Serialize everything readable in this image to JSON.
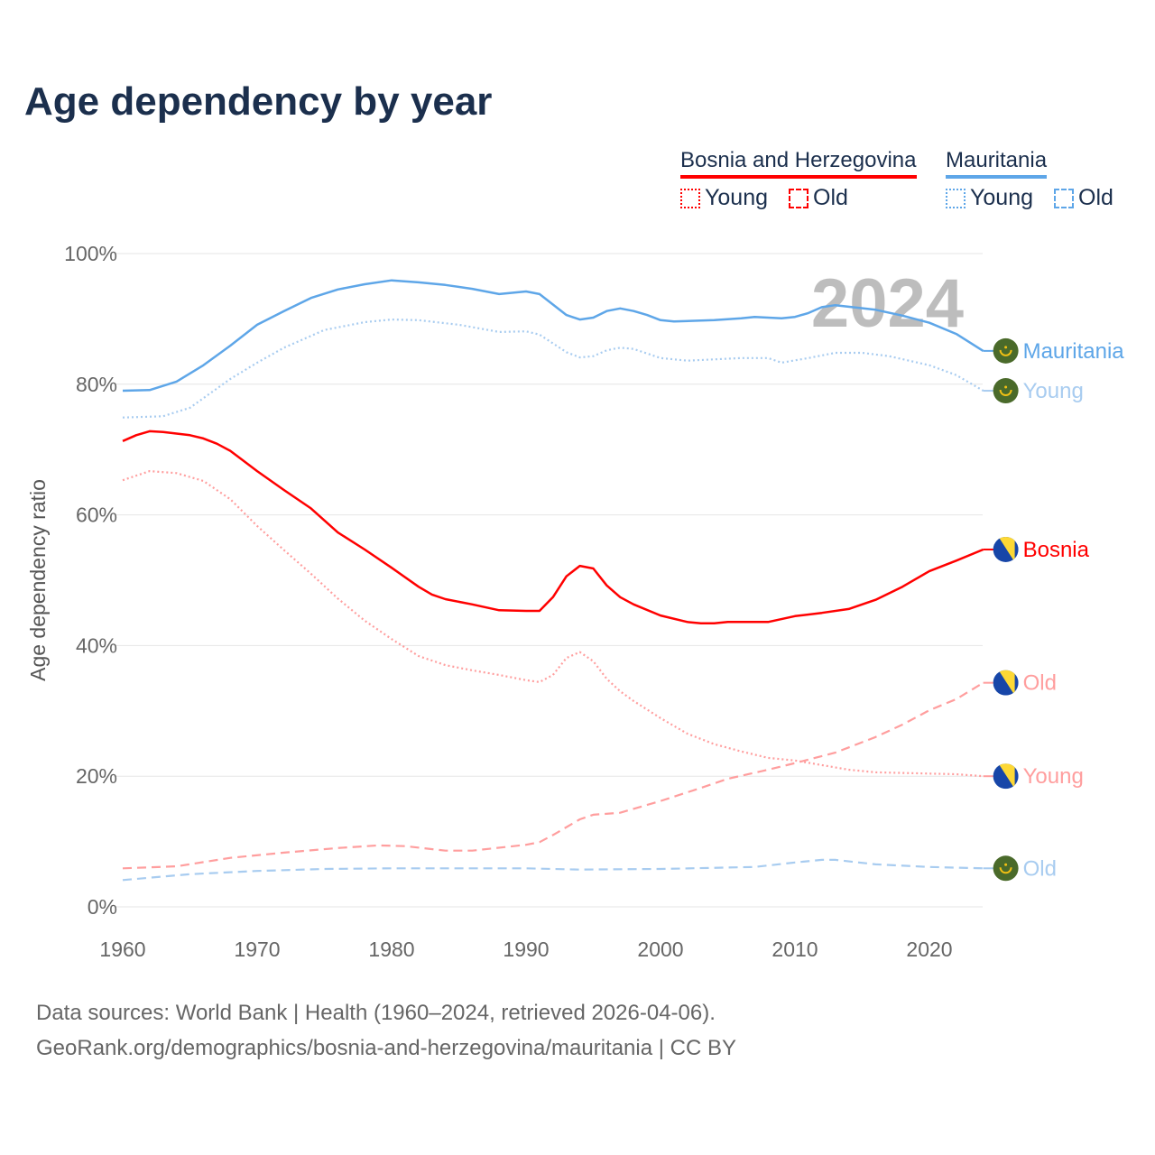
{
  "title": "Age dependency by year",
  "legend": {
    "groups": [
      {
        "name": "Bosnia and Herzegovina",
        "color": "#ff0000",
        "items": [
          "Young",
          "Old"
        ]
      },
      {
        "name": "Mauritania",
        "color": "#5ea6e8",
        "items": [
          "Young",
          "Old"
        ]
      }
    ]
  },
  "chart_data": {
    "type": "line",
    "title": "Age dependency by year",
    "xlabel": "",
    "ylabel": "Age dependency ratio",
    "xlim": [
      1960,
      2024
    ],
    "ylim": [
      0,
      100
    ],
    "xticks": [
      "1960",
      "1970",
      "1980",
      "1990",
      "2000",
      "2010",
      "2020"
    ],
    "yticks": [
      "0%",
      "20%",
      "40%",
      "60%",
      "80%",
      "100%"
    ],
    "grid": true,
    "year_watermark": "2024",
    "series": [
      {
        "name": "Mauritania",
        "end_label": "Mauritania",
        "color": "#5ea6e8",
        "dash": "solid",
        "flag": "mauritania",
        "x": [
          1960,
          1962,
          1964,
          1966,
          1968,
          1970,
          1972,
          1974,
          1976,
          1978,
          1980,
          1982,
          1984,
          1986,
          1988,
          1990,
          1991,
          1993,
          1994,
          1995,
          1996,
          1997,
          1998,
          1999,
          2000,
          2001,
          2004,
          2006,
          2007,
          2009,
          2010,
          2011,
          2012,
          2013,
          2016,
          2018,
          2020,
          2022,
          2024
        ],
        "y": [
          79.0,
          79.1,
          80.4,
          82.9,
          85.9,
          89.1,
          91.2,
          93.2,
          94.5,
          95.3,
          95.9,
          95.6,
          95.2,
          94.6,
          93.8,
          94.2,
          93.8,
          90.6,
          89.9,
          90.2,
          91.2,
          91.6,
          91.2,
          90.6,
          89.8,
          89.6,
          89.8,
          90.1,
          90.3,
          90.1,
          90.3,
          90.9,
          91.8,
          92.1,
          91.4,
          90.5,
          89.4,
          87.7,
          85.1
        ]
      },
      {
        "name": "Mauritania Young",
        "end_label": "Young",
        "color": "#a8ccf0",
        "dash": "dotted",
        "flag": "mauritania",
        "x": [
          1960,
          1963,
          1965,
          1968,
          1970,
          1972,
          1975,
          1978,
          1980,
          1982,
          1985,
          1988,
          1990,
          1991,
          1993,
          1994,
          1995,
          1996,
          1997,
          1998,
          2000,
          2002,
          2006,
          2008,
          2009,
          2011,
          2013,
          2015,
          2017,
          2020,
          2022,
          2024
        ],
        "y": [
          74.9,
          75.1,
          76.4,
          80.8,
          83.3,
          85.6,
          88.3,
          89.5,
          89.9,
          89.8,
          89.1,
          88.0,
          88.1,
          87.6,
          84.9,
          84.1,
          84.3,
          85.2,
          85.6,
          85.4,
          84.0,
          83.6,
          84.0,
          84.0,
          83.3,
          84.0,
          84.8,
          84.8,
          84.3,
          82.9,
          81.4,
          79.0
        ]
      },
      {
        "name": "Mauritania Old",
        "end_label": "Old",
        "color": "#a8ccf0",
        "dash": "dashed",
        "flag": "mauritania",
        "x": [
          1960,
          1965,
          1970,
          1975,
          1980,
          1990,
          1994,
          2000,
          2007,
          2010,
          2012,
          2013,
          2016,
          2020,
          2024
        ],
        "y": [
          4.1,
          5.0,
          5.5,
          5.8,
          5.9,
          5.9,
          5.7,
          5.8,
          6.1,
          6.8,
          7.2,
          7.2,
          6.5,
          6.1,
          5.9
        ]
      },
      {
        "name": "Bosnia",
        "end_label": "Bosnia",
        "color": "#ff0000",
        "dash": "solid",
        "flag": "bosnia",
        "x": [
          1960,
          1961,
          1962,
          1963,
          1965,
          1966,
          1967,
          1968,
          1970,
          1972,
          1974,
          1976,
          1978,
          1980,
          1982,
          1983,
          1984,
          1986,
          1988,
          1990,
          1991,
          1992,
          1993,
          1994,
          1995,
          1996,
          1997,
          1998,
          2000,
          2002,
          2003,
          2004,
          2005,
          2007,
          2008,
          2010,
          2012,
          2014,
          2016,
          2018,
          2020,
          2022,
          2024
        ],
        "y": [
          71.3,
          72.2,
          72.8,
          72.7,
          72.2,
          71.7,
          70.9,
          69.8,
          66.7,
          63.8,
          61.0,
          57.3,
          54.7,
          51.9,
          49.0,
          47.8,
          47.1,
          46.3,
          45.4,
          45.3,
          45.3,
          47.4,
          50.6,
          52.2,
          51.8,
          49.2,
          47.4,
          46.3,
          44.6,
          43.6,
          43.4,
          43.4,
          43.6,
          43.6,
          43.6,
          44.5,
          45.0,
          45.6,
          47.0,
          49.0,
          51.4,
          53.0,
          54.7
        ]
      },
      {
        "name": "Bosnia Old",
        "end_label": "Old",
        "color": "#ff9e9e",
        "dash": "dashed",
        "flag": "bosnia",
        "x": [
          1960,
          1964,
          1968,
          1972,
          1976,
          1979,
          1981,
          1984,
          1986,
          1990,
          1991,
          1992,
          1994,
          1995,
          1997,
          2000,
          2003,
          2005,
          2008,
          2010,
          2013,
          2016,
          2018,
          2020,
          2022,
          2024
        ],
        "y": [
          5.9,
          6.2,
          7.5,
          8.3,
          9.0,
          9.4,
          9.3,
          8.6,
          8.6,
          9.5,
          9.9,
          11.0,
          13.4,
          14.1,
          14.4,
          16.2,
          18.2,
          19.6,
          21.0,
          22.0,
          23.6,
          26.0,
          27.9,
          30.1,
          31.8,
          34.3
        ]
      },
      {
        "name": "Bosnia Young",
        "end_label": "Young",
        "color": "#ff9e9e",
        "dash": "dotted",
        "flag": "bosnia",
        "x": [
          1960,
          1962,
          1964,
          1966,
          1968,
          1970,
          1972,
          1974,
          1976,
          1978,
          1980,
          1982,
          1984,
          1986,
          1988,
          1990,
          1991,
          1992,
          1993,
          1994,
          1995,
          1996,
          1997,
          1998,
          2000,
          2002,
          2004,
          2006,
          2008,
          2010,
          2012,
          2014,
          2016,
          2020,
          2022,
          2024
        ],
        "y": [
          65.3,
          66.7,
          66.4,
          65.2,
          62.4,
          58.3,
          54.6,
          51.0,
          47.2,
          43.8,
          41.0,
          38.4,
          37.0,
          36.2,
          35.5,
          34.7,
          34.4,
          35.5,
          38.1,
          39.0,
          37.6,
          34.9,
          33.0,
          31.5,
          28.9,
          26.5,
          24.9,
          23.8,
          22.8,
          22.4,
          21.7,
          21.0,
          20.6,
          20.4,
          20.3,
          20.0
        ]
      }
    ]
  },
  "footer": {
    "line1": "Data sources: World Bank | Health (1960–2024, retrieved 2026-04-06).",
    "line2": "GeoRank.org/demographics/bosnia-and-herzegovina/mauritania | CC BY"
  }
}
